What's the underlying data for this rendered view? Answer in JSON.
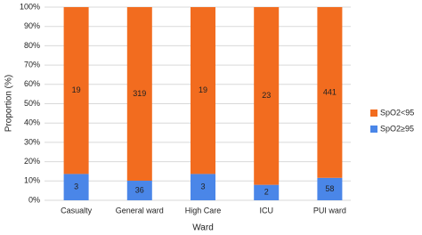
{
  "chart_data": {
    "type": "bar",
    "stack": "percent",
    "x_label": "Ward",
    "y_label": "Proportion (%)",
    "categories": [
      "Casualty",
      "General ward",
      "High Care",
      "ICU",
      "PUI ward"
    ],
    "series": [
      {
        "name": "SpO2≥95",
        "color": "#4a86e8",
        "values": [
          3,
          36,
          3,
          2,
          58
        ]
      },
      {
        "name": "SpO2<95",
        "color": "#f26c1f",
        "values": [
          19,
          319,
          19,
          23,
          441
        ]
      }
    ],
    "ylim": [
      0,
      100
    ],
    "yticks": [
      {
        "value": 0,
        "label": "0%"
      },
      {
        "value": 10,
        "label": "10%"
      },
      {
        "value": 20,
        "label": "20%"
      },
      {
        "value": 30,
        "label": "30%"
      },
      {
        "value": 40,
        "label": "40%"
      },
      {
        "value": 50,
        "label": "50%"
      },
      {
        "value": 60,
        "label": "60%"
      },
      {
        "value": 70,
        "label": "70%"
      },
      {
        "value": 80,
        "label": "80%"
      },
      {
        "value": 90,
        "label": "90%"
      },
      {
        "value": 100,
        "label": "100%"
      }
    ],
    "grid": true,
    "legend": "right"
  }
}
